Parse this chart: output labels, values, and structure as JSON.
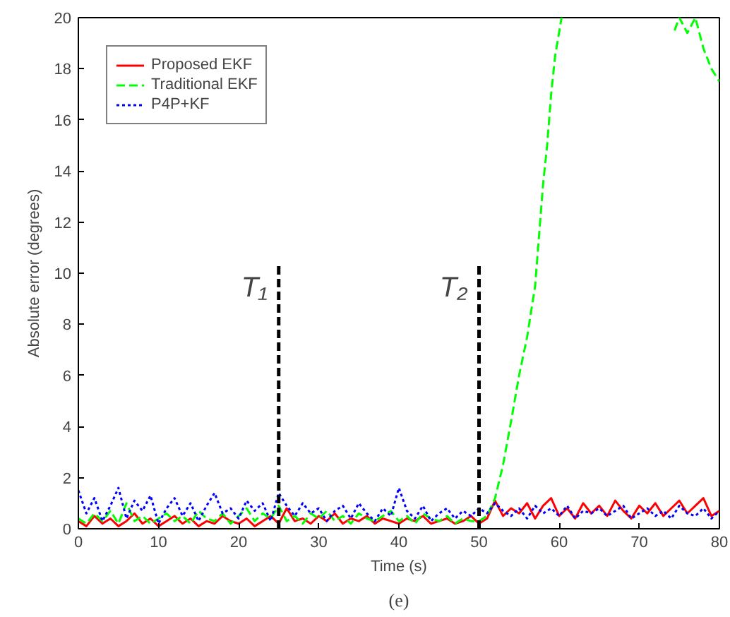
{
  "chart_data": {
    "type": "line",
    "xlabel": "Time (s)",
    "ylabel": "Absolute error (degrees)",
    "annotations": [
      "(e)"
    ],
    "xlim": [
      0,
      80
    ],
    "xticks": [
      0,
      10,
      20,
      30,
      40,
      50,
      60,
      70,
      80
    ],
    "ylim": [
      0,
      20
    ],
    "yticks": [
      0,
      2,
      4,
      6,
      8,
      10,
      12,
      14,
      16,
      18,
      20
    ],
    "grid": false,
    "legend": "top left",
    "ref_lines": [
      {
        "axis": "x",
        "value": 25,
        "label": "T₁",
        "color": "#000000",
        "line_style": "dashed"
      },
      {
        "axis": "x",
        "value": 50,
        "label": "T₂",
        "color": "#000000",
        "line_style": "dashed"
      }
    ],
    "series": [
      {
        "name": "Proposed EKF",
        "color": "#ff0000",
        "line_style": "solid",
        "x": [
          0,
          1,
          2,
          3,
          4,
          5,
          6,
          7,
          8,
          9,
          10,
          11,
          12,
          13,
          14,
          15,
          16,
          17,
          18,
          19,
          20,
          21,
          22,
          23,
          24,
          25,
          26,
          27,
          28,
          29,
          30,
          31,
          32,
          33,
          34,
          35,
          36,
          37,
          38,
          39,
          40,
          41,
          42,
          43,
          44,
          45,
          46,
          47,
          48,
          49,
          50,
          51,
          52,
          53,
          54,
          55,
          56,
          57,
          58,
          59,
          60,
          61,
          62,
          63,
          64,
          65,
          66,
          67,
          68,
          69,
          70,
          71,
          72,
          73,
          74,
          75,
          76,
          77,
          78,
          79,
          80
        ],
        "values": [
          0.3,
          0.1,
          0.5,
          0.2,
          0.4,
          0.1,
          0.3,
          0.6,
          0.2,
          0.4,
          0.1,
          0.3,
          0.5,
          0.2,
          0.4,
          0.1,
          0.3,
          0.2,
          0.5,
          0.3,
          0.2,
          0.4,
          0.1,
          0.3,
          0.5,
          0.2,
          0.8,
          0.3,
          0.4,
          0.2,
          0.5,
          0.3,
          0.6,
          0.2,
          0.4,
          0.3,
          0.5,
          0.2,
          0.4,
          0.3,
          0.2,
          0.4,
          0.3,
          0.5,
          0.2,
          0.3,
          0.4,
          0.2,
          0.3,
          0.5,
          0.2,
          0.4,
          1.1,
          0.5,
          0.8,
          0.6,
          1.0,
          0.4,
          0.9,
          1.2,
          0.5,
          0.8,
          0.4,
          1.0,
          0.6,
          0.9,
          0.5,
          1.1,
          0.7,
          0.4,
          0.9,
          0.6,
          1.0,
          0.5,
          0.8,
          1.1,
          0.6,
          0.9,
          1.2,
          0.5,
          0.7
        ]
      },
      {
        "name": "Traditional EKF",
        "color": "#00ff00",
        "line_style": "dashed",
        "x": [
          0,
          1,
          2,
          3,
          4,
          5,
          6,
          7,
          8,
          9,
          10,
          11,
          12,
          13,
          14,
          15,
          16,
          17,
          18,
          19,
          20,
          21,
          22,
          23,
          24,
          25,
          26,
          27,
          28,
          29,
          30,
          31,
          32,
          33,
          34,
          35,
          36,
          37,
          38,
          39,
          40,
          41,
          42,
          43,
          44,
          45,
          46,
          47,
          48,
          49,
          50,
          51,
          52,
          53,
          54,
          55,
          56,
          57,
          57.5,
          58,
          58.5,
          59,
          59.5,
          60.3,
          61,
          74,
          74.4,
          75,
          76,
          77,
          78,
          79,
          80
        ],
        "values": [
          0.4,
          0.2,
          0.6,
          0.3,
          0.7,
          0.2,
          1.0,
          0.3,
          0.5,
          0.2,
          0.4,
          0.6,
          0.3,
          0.5,
          0.2,
          0.7,
          0.4,
          0.3,
          0.6,
          0.2,
          0.5,
          0.8,
          0.3,
          0.6,
          0.4,
          0.9,
          0.3,
          0.5,
          0.2,
          0.6,
          0.4,
          0.7,
          0.3,
          0.5,
          0.2,
          0.6,
          0.4,
          0.3,
          0.5,
          0.7,
          0.3,
          0.5,
          0.2,
          0.6,
          0.4,
          0.3,
          0.5,
          0.2,
          0.4,
          0.3,
          0.3,
          0.5,
          1.2,
          2.5,
          4.2,
          6,
          7.5,
          9.5,
          11.5,
          13.5,
          15,
          17,
          18.5,
          20,
          null,
          null,
          19.5,
          20,
          19.4,
          20,
          18.8,
          18,
          17.5
        ]
      },
      {
        "name": "P4P+KF",
        "color": "#0000ff",
        "line_style": "dotted",
        "x": [
          0,
          1,
          2,
          3,
          4,
          5,
          6,
          7,
          8,
          9,
          10,
          11,
          12,
          13,
          14,
          15,
          16,
          17,
          18,
          19,
          20,
          21,
          22,
          23,
          24,
          25,
          26,
          27,
          28,
          29,
          30,
          31,
          32,
          33,
          34,
          35,
          36,
          37,
          38,
          39,
          40,
          41,
          42,
          43,
          44,
          45,
          46,
          47,
          48,
          49,
          50,
          51,
          52,
          53,
          54,
          55,
          56,
          57,
          58,
          59,
          60,
          61,
          62,
          63,
          64,
          65,
          66,
          67,
          68,
          69,
          70,
          71,
          72,
          73,
          74,
          75,
          76,
          77,
          78,
          79,
          80
        ],
        "values": [
          1.5,
          0.6,
          1.2,
          0.3,
          0.9,
          1.6,
          0.4,
          1.1,
          0.7,
          1.3,
          0.2,
          0.8,
          1.2,
          0.5,
          1.0,
          0.3,
          0.9,
          1.4,
          0.6,
          0.8,
          0.4,
          1.1,
          0.7,
          1.0,
          0.3,
          1.4,
          0.9,
          0.5,
          1.0,
          0.6,
          0.8,
          0.3,
          0.7,
          0.9,
          0.4,
          1.0,
          0.6,
          0.3,
          0.8,
          0.5,
          1.6,
          0.7,
          0.4,
          0.9,
          0.3,
          0.6,
          0.8,
          0.4,
          0.7,
          0.5,
          0.8,
          0.6,
          1.0,
          0.7,
          0.5,
          0.8,
          0.4,
          0.9,
          0.6,
          0.8,
          0.5,
          0.9,
          0.4,
          0.7,
          0.6,
          0.8,
          0.5,
          0.7,
          0.9,
          0.4,
          0.6,
          0.8,
          0.5,
          0.7,
          0.4,
          0.9,
          0.6,
          0.5,
          0.8,
          0.4,
          0.7
        ]
      }
    ]
  }
}
